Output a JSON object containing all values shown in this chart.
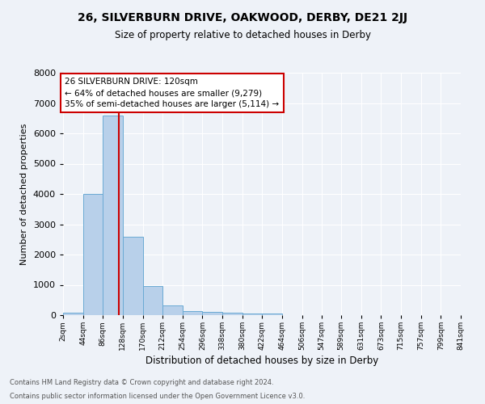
{
  "title1": "26, SILVERBURN DRIVE, OAKWOOD, DERBY, DE21 2JJ",
  "title2": "Size of property relative to detached houses in Derby",
  "xlabel": "Distribution of detached houses by size in Derby",
  "ylabel": "Number of detached properties",
  "footnote1": "Contains HM Land Registry data © Crown copyright and database right 2024.",
  "footnote2": "Contains public sector information licensed under the Open Government Licence v3.0.",
  "annotation_line1": "26 SILVERBURN DRIVE: 120sqm",
  "annotation_line2": "← 64% of detached houses are smaller (9,279)",
  "annotation_line3": "35% of semi-detached houses are larger (5,114) →",
  "property_size": 120,
  "bar_edges": [
    2,
    44,
    86,
    128,
    170,
    212,
    254,
    296,
    338,
    380,
    422,
    464,
    506,
    547,
    589,
    631,
    673,
    715,
    757,
    799,
    841
  ],
  "bar_heights": [
    75,
    4000,
    6600,
    2600,
    950,
    310,
    135,
    110,
    75,
    65,
    65,
    0,
    0,
    0,
    0,
    0,
    0,
    0,
    0,
    0
  ],
  "bar_color": "#b8d0ea",
  "bar_edge_color": "#6aaad4",
  "vline_color": "#cc0000",
  "vline_x": 120,
  "ylim": [
    0,
    8000
  ],
  "yticks": [
    0,
    1000,
    2000,
    3000,
    4000,
    5000,
    6000,
    7000,
    8000
  ],
  "xtick_labels": [
    "2sqm",
    "44sqm",
    "86sqm",
    "128sqm",
    "170sqm",
    "212sqm",
    "254sqm",
    "296sqm",
    "338sqm",
    "380sqm",
    "422sqm",
    "464sqm",
    "506sqm",
    "547sqm",
    "589sqm",
    "631sqm",
    "673sqm",
    "715sqm",
    "757sqm",
    "799sqm",
    "841sqm"
  ],
  "bg_color": "#eef2f8",
  "annotation_box_color": "#ffffff",
  "annotation_box_edge": "#cc0000",
  "grid_color": "#ffffff"
}
